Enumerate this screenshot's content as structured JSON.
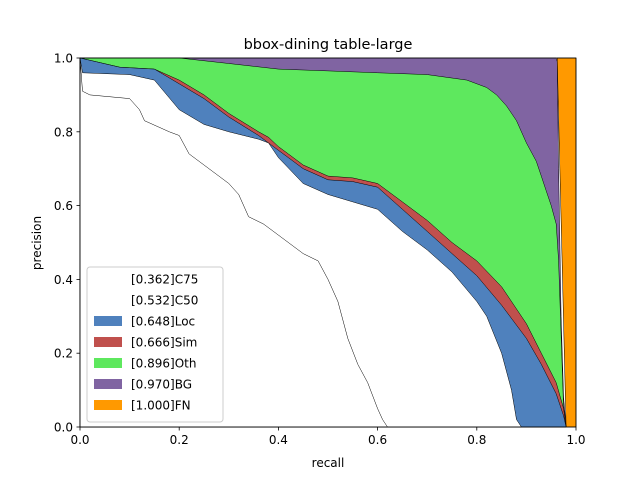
{
  "chart_data": {
    "type": "area",
    "title": "bbox-dining table-large",
    "xlabel": "recall",
    "ylabel": "precision",
    "xlim": [
      0,
      1
    ],
    "ylim": [
      0,
      1
    ],
    "x_ticks": [
      "0.0",
      "0.2",
      "0.4",
      "0.6",
      "0.8",
      "1.0"
    ],
    "y_ticks": [
      "0.0",
      "0.2",
      "0.4",
      "0.6",
      "0.8",
      "1.0"
    ],
    "grid": false,
    "legend_position": "lower-left",
    "series": [
      {
        "name": "[1.000]FN",
        "color": "#ff9900",
        "points": [
          [
            0.962,
            1.0
          ],
          [
            1.0,
            1.0
          ],
          [
            1.0,
            0.0
          ],
          [
            0.98,
            0.0
          ]
        ]
      },
      {
        "name": "[0.970]BG",
        "color": "#8064a2",
        "points": [
          [
            0.0,
            1.0
          ],
          [
            0.96,
            1.0
          ],
          [
            0.962,
            0.99
          ],
          [
            0.965,
            0.7
          ],
          [
            0.97,
            0.3
          ],
          [
            0.975,
            0.08
          ],
          [
            0.98,
            0.0
          ]
        ]
      },
      {
        "name": "[0.896]Oth",
        "color": "#5ee85e",
        "points": [
          [
            0.0,
            1.0
          ],
          [
            0.2,
            1.0
          ],
          [
            0.3,
            0.985
          ],
          [
            0.4,
            0.97
          ],
          [
            0.5,
            0.965
          ],
          [
            0.6,
            0.96
          ],
          [
            0.7,
            0.955
          ],
          [
            0.78,
            0.94
          ],
          [
            0.82,
            0.92
          ],
          [
            0.84,
            0.9
          ],
          [
            0.86,
            0.87
          ],
          [
            0.88,
            0.83
          ],
          [
            0.9,
            0.77
          ],
          [
            0.92,
            0.72
          ],
          [
            0.93,
            0.68
          ],
          [
            0.94,
            0.64
          ],
          [
            0.95,
            0.6
          ],
          [
            0.96,
            0.55
          ],
          [
            0.965,
            0.45
          ],
          [
            0.97,
            0.25
          ],
          [
            0.975,
            0.05
          ],
          [
            0.98,
            0.0
          ]
        ]
      },
      {
        "name": "[0.666]Sim",
        "color": "#c0504d",
        "points": [
          [
            0.0,
            1.0
          ],
          [
            0.08,
            0.975
          ],
          [
            0.15,
            0.97
          ],
          [
            0.2,
            0.94
          ],
          [
            0.25,
            0.9
          ],
          [
            0.3,
            0.85
          ],
          [
            0.36,
            0.8
          ],
          [
            0.38,
            0.785
          ],
          [
            0.4,
            0.76
          ],
          [
            0.42,
            0.74
          ],
          [
            0.45,
            0.71
          ],
          [
            0.5,
            0.68
          ],
          [
            0.55,
            0.675
          ],
          [
            0.6,
            0.66
          ],
          [
            0.65,
            0.61
          ],
          [
            0.7,
            0.56
          ],
          [
            0.75,
            0.5
          ],
          [
            0.8,
            0.45
          ],
          [
            0.85,
            0.38
          ],
          [
            0.9,
            0.28
          ],
          [
            0.93,
            0.2
          ],
          [
            0.96,
            0.12
          ],
          [
            0.975,
            0.05
          ],
          [
            0.98,
            0.0
          ]
        ]
      },
      {
        "name": "[0.648]Loc",
        "color": "#4f81bd",
        "points": [
          [
            0.0,
            1.0
          ],
          [
            0.08,
            0.975
          ],
          [
            0.15,
            0.97
          ],
          [
            0.2,
            0.93
          ],
          [
            0.25,
            0.89
          ],
          [
            0.3,
            0.84
          ],
          [
            0.36,
            0.79
          ],
          [
            0.38,
            0.77
          ],
          [
            0.4,
            0.75
          ],
          [
            0.42,
            0.73
          ],
          [
            0.45,
            0.7
          ],
          [
            0.5,
            0.67
          ],
          [
            0.55,
            0.665
          ],
          [
            0.6,
            0.65
          ],
          [
            0.65,
            0.59
          ],
          [
            0.7,
            0.53
          ],
          [
            0.75,
            0.47
          ],
          [
            0.8,
            0.41
          ],
          [
            0.85,
            0.33
          ],
          [
            0.9,
            0.24
          ],
          [
            0.93,
            0.17
          ],
          [
            0.96,
            0.09
          ],
          [
            0.975,
            0.03
          ],
          [
            0.98,
            0.0
          ]
        ]
      },
      {
        "name": "[0.532]C50",
        "color": "#ffffff",
        "points": [
          [
            0.0,
            1.0
          ],
          [
            0.005,
            0.96
          ],
          [
            0.1,
            0.955
          ],
          [
            0.15,
            0.94
          ],
          [
            0.2,
            0.86
          ],
          [
            0.25,
            0.82
          ],
          [
            0.3,
            0.8
          ],
          [
            0.36,
            0.78
          ],
          [
            0.38,
            0.77
          ],
          [
            0.4,
            0.73
          ],
          [
            0.45,
            0.66
          ],
          [
            0.5,
            0.63
          ],
          [
            0.55,
            0.61
          ],
          [
            0.6,
            0.59
          ],
          [
            0.65,
            0.53
          ],
          [
            0.7,
            0.48
          ],
          [
            0.75,
            0.42
          ],
          [
            0.8,
            0.34
          ],
          [
            0.82,
            0.3
          ],
          [
            0.85,
            0.2
          ],
          [
            0.87,
            0.1
          ],
          [
            0.88,
            0.02
          ],
          [
            0.89,
            0.0
          ]
        ]
      },
      {
        "name": "[0.362]C75",
        "color": "#ffffff",
        "points": [
          [
            0.0,
            1.0
          ],
          [
            0.005,
            0.91
          ],
          [
            0.02,
            0.9
          ],
          [
            0.1,
            0.89
          ],
          [
            0.12,
            0.86
          ],
          [
            0.13,
            0.83
          ],
          [
            0.18,
            0.8
          ],
          [
            0.2,
            0.79
          ],
          [
            0.22,
            0.74
          ],
          [
            0.25,
            0.71
          ],
          [
            0.28,
            0.68
          ],
          [
            0.3,
            0.66
          ],
          [
            0.32,
            0.63
          ],
          [
            0.34,
            0.57
          ],
          [
            0.37,
            0.55
          ],
          [
            0.4,
            0.52
          ],
          [
            0.45,
            0.47
          ],
          [
            0.48,
            0.45
          ],
          [
            0.5,
            0.4
          ],
          [
            0.52,
            0.34
          ],
          [
            0.54,
            0.24
          ],
          [
            0.56,
            0.17
          ],
          [
            0.58,
            0.12
          ],
          [
            0.6,
            0.05
          ],
          [
            0.61,
            0.02
          ],
          [
            0.62,
            0.0
          ]
        ]
      }
    ]
  }
}
